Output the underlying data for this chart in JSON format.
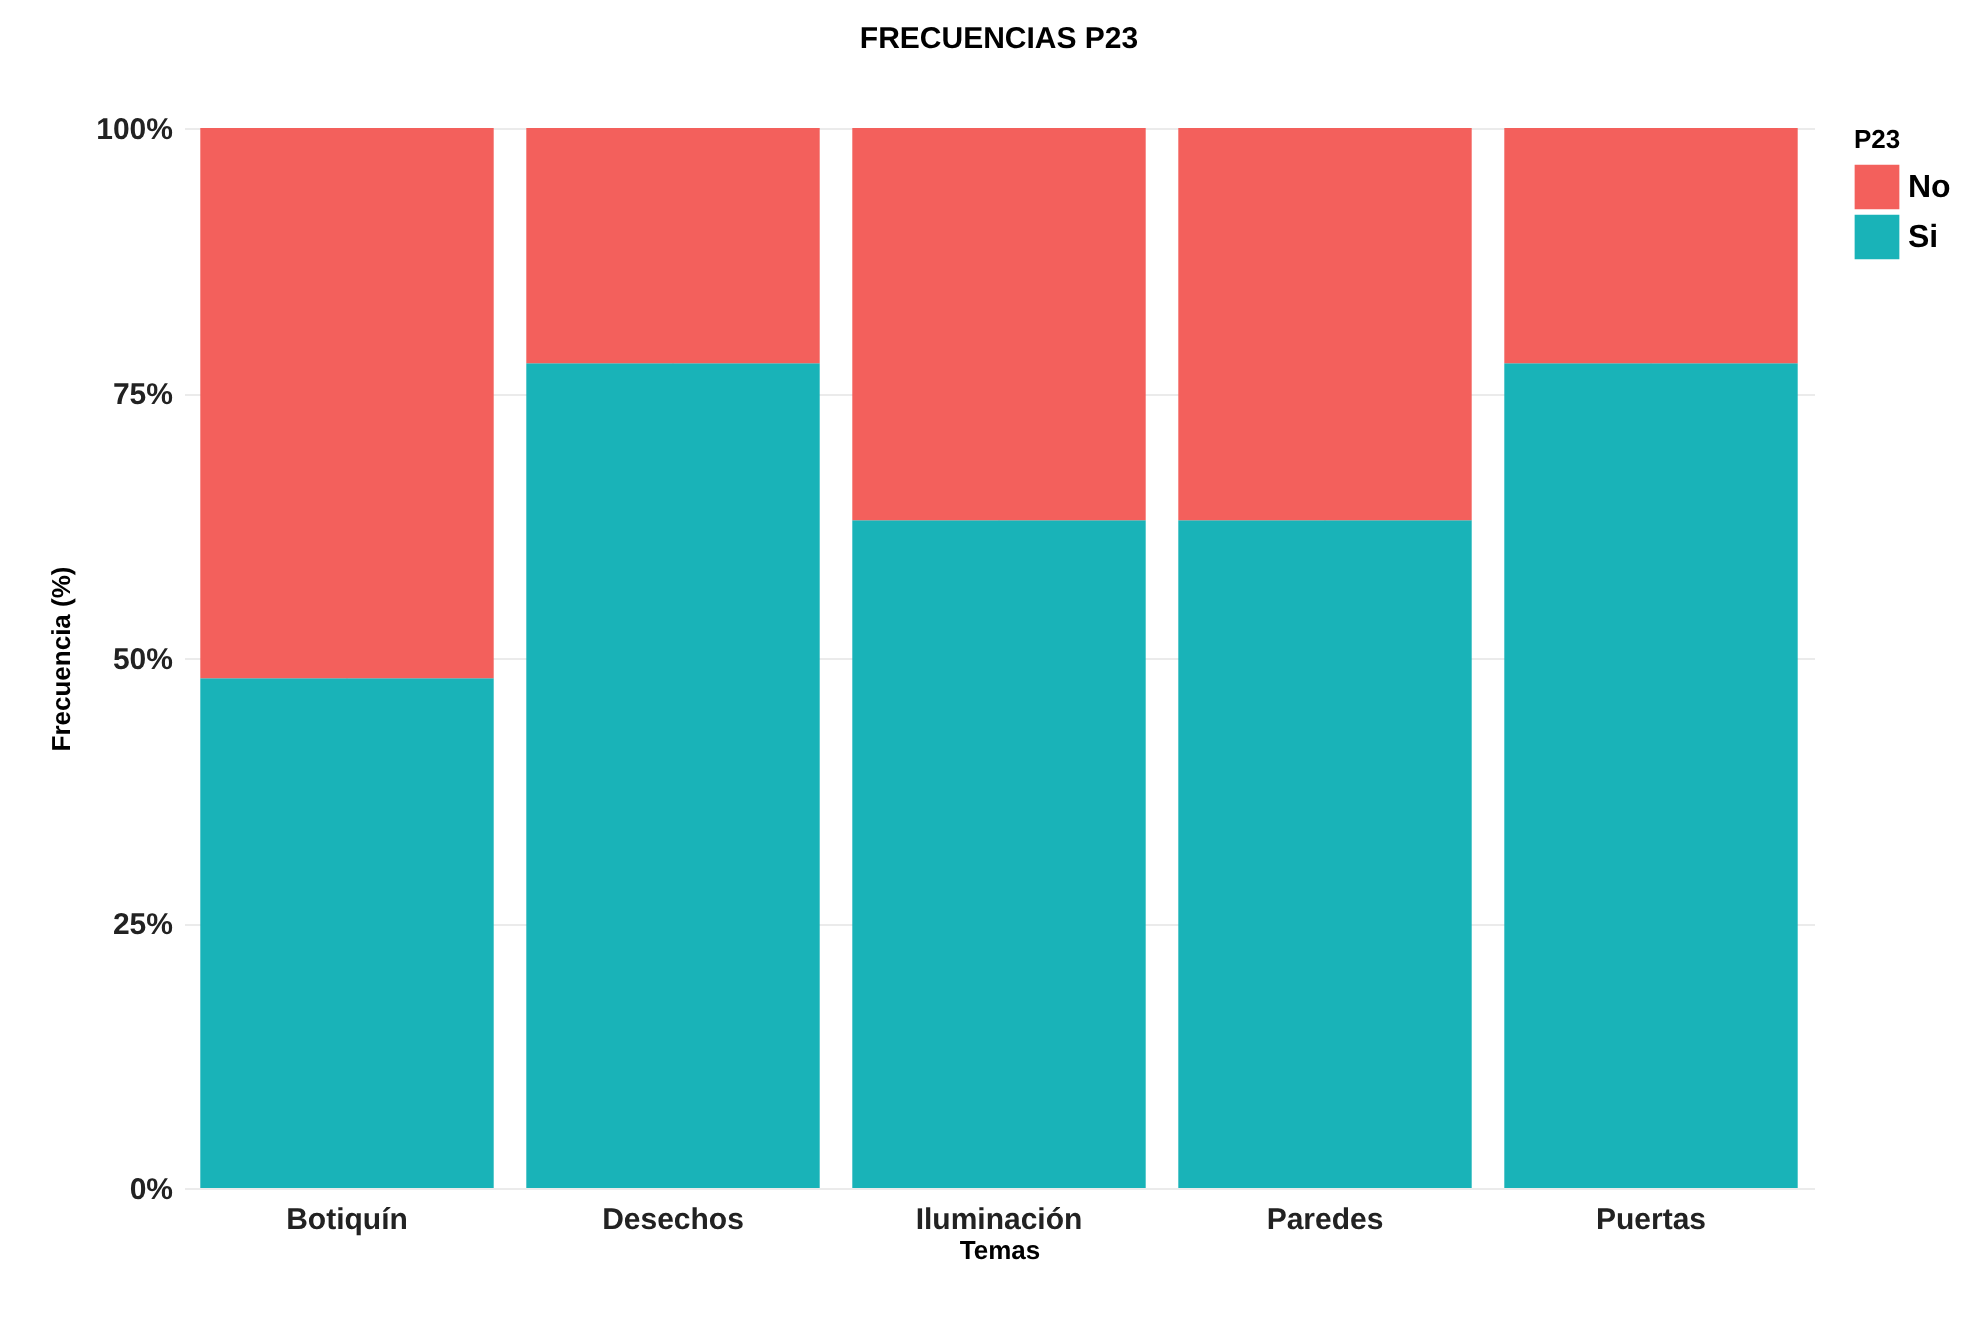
{
  "chart_data": {
    "type": "bar",
    "title": "FRECUENCIAS P23",
    "xlabel": "Temas",
    "ylabel": "Frecuencia (%)",
    "legend_title": "P23",
    "categories": [
      "Botiquín",
      "Desechos",
      "Iluminación",
      "Paredes",
      "Puertas"
    ],
    "stacked": true,
    "series": [
      {
        "name": "Si",
        "color": "#19b3b8",
        "values": [
          48.1,
          77.8,
          63.0,
          63.0,
          77.8
        ]
      },
      {
        "name": "No",
        "color": "#f3605c",
        "values": [
          51.9,
          22.2,
          37.0,
          37.0,
          22.2
        ]
      }
    ],
    "ylim": [
      0,
      100
    ],
    "yticks": [
      {
        "value": 0,
        "label": "0%"
      },
      {
        "value": 25,
        "label": "25%"
      },
      {
        "value": 50,
        "label": "50%"
      },
      {
        "value": 75,
        "label": "75%"
      },
      {
        "value": 100,
        "label": "100%"
      }
    ],
    "grid": true,
    "legend": "right"
  }
}
